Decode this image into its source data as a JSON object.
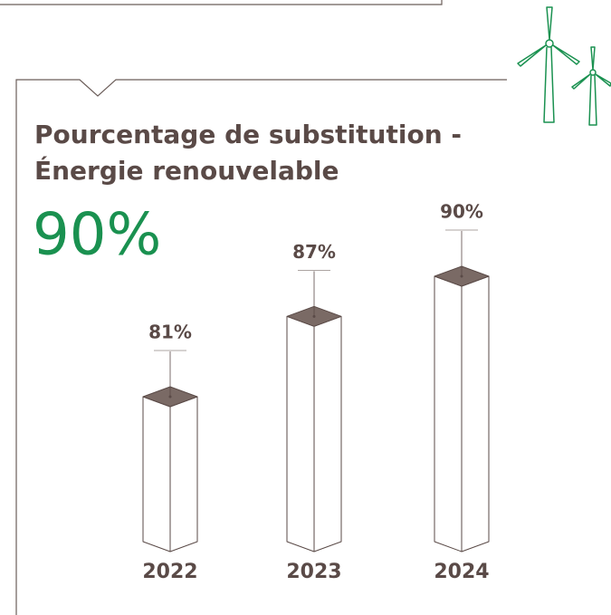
{
  "chart_data": {
    "type": "bar",
    "title": "Pourcentage de substitution -",
    "subtitle": "Énergie renouvelable",
    "highlight": "90%",
    "categories": [
      "2022",
      "2023",
      "2024"
    ],
    "values": [
      81,
      87,
      90
    ],
    "value_labels": [
      "81%",
      "87%",
      "90%"
    ],
    "color": "#ffffff",
    "top_color": "#7a6a65"
  }
}
